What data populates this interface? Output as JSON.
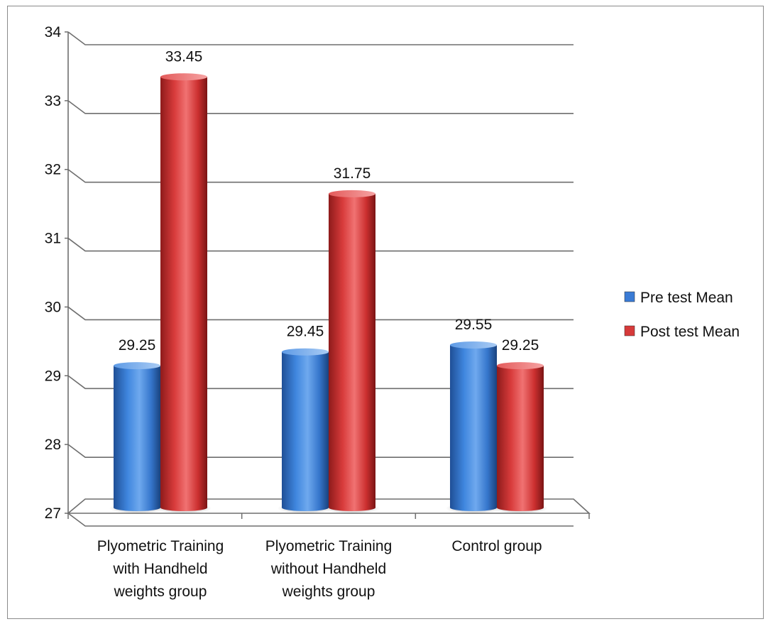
{
  "chart_data": {
    "type": "bar",
    "title": "",
    "xlabel": "",
    "ylabel": "",
    "categories": [
      [
        "Plyometric Training",
        "with Handheld",
        "weights group"
      ],
      [
        "Plyometric Training",
        "without Handheld",
        "weights group"
      ],
      [
        "Control group"
      ]
    ],
    "series": [
      {
        "name": "Pre test Mean",
        "values": [
          29.25,
          29.45,
          29.55
        ],
        "labels": [
          "29.25",
          "29.45",
          "29.55"
        ],
        "color": "#3a7bd5"
      },
      {
        "name": "Post test Mean",
        "values": [
          33.45,
          31.75,
          29.25
        ],
        "labels": [
          "33.45",
          "31.75",
          "29.25"
        ],
        "color": "#d63a3a"
      }
    ],
    "ylim": [
      27,
      34
    ],
    "yticks": [
      "27",
      "28",
      "29",
      "30",
      "31",
      "32",
      "33",
      "34"
    ],
    "grid": true,
    "legend_position": "right",
    "style": "3d-cylinder"
  }
}
